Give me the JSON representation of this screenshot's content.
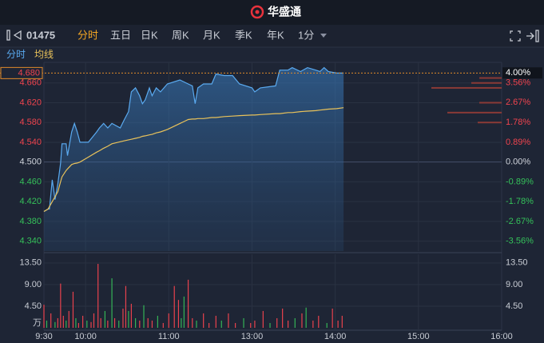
{
  "header": {
    "brand": "华盛通"
  },
  "toolbar": {
    "symbol": "01475",
    "tabs": [
      "分时",
      "五日",
      "日K",
      "周K",
      "月K",
      "季K",
      "年K"
    ],
    "active_tab": 0,
    "interval": "1分"
  },
  "chart_data": [
    {
      "type": "line",
      "x": [
        0,
        3,
        4,
        6,
        8,
        10,
        12,
        13,
        16,
        17,
        20,
        22,
        24,
        26,
        32,
        38,
        40,
        43,
        46,
        49,
        55,
        58,
        61,
        63,
        66,
        69,
        71,
        73,
        76,
        78,
        81,
        84,
        89,
        98,
        101,
        104,
        107,
        109,
        111,
        115,
        121,
        124,
        130,
        136,
        141,
        150,
        152,
        156,
        167,
        170,
        176,
        179,
        185,
        190,
        196,
        199,
        202,
        205,
        211,
        216
      ],
      "xlim": [
        0,
        330
      ],
      "series": [
        {
          "name": "分时",
          "color": "#5aaaf0",
          "values": [
            4.4,
            4.405,
            4.405,
            4.464,
            4.424,
            4.456,
            4.497,
            4.537,
            4.537,
            4.513,
            4.561,
            4.578,
            4.561,
            4.54,
            4.54,
            4.561,
            4.569,
            4.578,
            4.569,
            4.578,
            4.569,
            4.586,
            4.602,
            4.642,
            4.65,
            4.634,
            4.618,
            4.626,
            4.65,
            4.634,
            4.65,
            4.642,
            4.658,
            4.666,
            4.662,
            4.658,
            4.654,
            4.618,
            4.65,
            4.658,
            4.658,
            4.678,
            4.675,
            4.675,
            4.658,
            4.65,
            4.642,
            4.65,
            4.654,
            4.686,
            4.686,
            4.691,
            4.683,
            4.691,
            4.686,
            4.683,
            4.691,
            4.683,
            4.68,
            4.68
          ]
        },
        {
          "name": "均线",
          "color": "#e9c25a",
          "values": [
            4.4,
            4.405,
            4.41,
            4.42,
            4.43,
            4.44,
            4.46,
            4.47,
            4.483,
            4.486,
            4.495,
            4.497,
            4.498,
            4.5,
            4.51,
            4.52,
            4.523,
            4.528,
            4.532,
            4.537,
            4.541,
            4.543,
            4.545,
            4.546,
            4.548,
            4.55,
            4.552,
            4.553,
            4.555,
            4.556,
            4.559,
            4.561,
            4.566,
            4.578,
            4.582,
            4.586,
            4.587,
            4.587,
            4.588,
            4.588,
            4.59,
            4.59,
            4.592,
            4.593,
            4.594,
            4.595,
            4.595,
            4.596,
            4.598,
            4.598,
            4.6,
            4.6,
            4.602,
            4.603,
            4.604,
            4.605,
            4.606,
            4.607,
            4.608,
            4.61
          ]
        }
      ],
      "ylim": [
        4.32,
        4.7
      ],
      "yticks": [
        {
          "value": 4.66,
          "label": "4.660"
        },
        {
          "value": 4.62,
          "label": "4.620"
        },
        {
          "value": 4.58,
          "label": "4.580"
        },
        {
          "value": 4.54,
          "label": "4.540"
        },
        {
          "value": 4.5,
          "label": "4.500"
        },
        {
          "value": 4.46,
          "label": "4.460"
        },
        {
          "value": 4.42,
          "label": "4.420"
        },
        {
          "value": 4.38,
          "label": "4.380"
        },
        {
          "value": 4.34,
          "label": "4.340"
        }
      ],
      "y2lim": [
        -4.0,
        4.44
      ],
      "y2ticks": [
        {
          "value": 3.56,
          "label": "3.56%"
        },
        {
          "value": 2.67,
          "label": "2.67%"
        },
        {
          "value": 1.78,
          "label": "1.78%"
        },
        {
          "value": 0.89,
          "label": "0.89%"
        },
        {
          "value": 0,
          "label": "0.00%"
        },
        {
          "value": -0.89,
          "label": "-0.89%"
        },
        {
          "value": -1.78,
          "label": "-1.78%"
        },
        {
          "value": -2.67,
          "label": "-2.67%"
        },
        {
          "value": -3.56,
          "label": "-3.56%"
        }
      ],
      "prev_close": 4.5,
      "up_color": "#f0444e",
      "down_color": "#35c15a",
      "flat_color": "#d0d4dc",
      "last_price": {
        "value": 4.68,
        "label": "4.680"
      },
      "last_change": {
        "value": 4.0,
        "label": "4.00%"
      },
      "volume_profile": {
        "prices": [
          4.67,
          4.66,
          4.65,
          4.62,
          4.6,
          4.58
        ],
        "values": [
          28,
          38,
          88,
          28,
          68,
          30
        ],
        "xlim": [
          0,
          100
        ],
        "color": "#8a3a36"
      }
    },
    {
      "type": "bar",
      "x": [
        0,
        2,
        5,
        8,
        10,
        12,
        14,
        16,
        18,
        21,
        23,
        25,
        28,
        31,
        34,
        36,
        39,
        41,
        44,
        46,
        49,
        51,
        54,
        57,
        59,
        61,
        63,
        66,
        69,
        72,
        75,
        78,
        82,
        86,
        90,
        94,
        97,
        99,
        101,
        104,
        107,
        110,
        115,
        119,
        124,
        128,
        133,
        138,
        144,
        149,
        152,
        158,
        163,
        168,
        172,
        176,
        181,
        186,
        189,
        194,
        198,
        204,
        208,
        212,
        215
      ],
      "xlim": [
        0,
        330
      ],
      "xticks": [
        {
          "value": 0,
          "label": "9:30"
        },
        {
          "value": 30,
          "label": "10:00"
        },
        {
          "value": 90,
          "label": "11:00"
        },
        {
          "value": 150,
          "label": "13:00"
        },
        {
          "value": 210,
          "label": "14:00"
        },
        {
          "value": 270,
          "label": "15:00"
        },
        {
          "value": 330,
          "label": "16:00"
        }
      ],
      "values": [
        4.8,
        1.5,
        3.0,
        1.2,
        2.0,
        9.2,
        2.5,
        1.5,
        3.5,
        7.5,
        2.0,
        1.0,
        2.5,
        1.5,
        1.2,
        3.0,
        13.3,
        2.0,
        3.5,
        1.5,
        10.3,
        2.0,
        1.5,
        4.0,
        8.7,
        3.5,
        5.0,
        2.0,
        1.5,
        4.7,
        2.0,
        1.5,
        2.5,
        1.0,
        3.0,
        8.7,
        5.8,
        2.0,
        6.5,
        10.0,
        2.0,
        1.5,
        3.0,
        1.0,
        2.5,
        1.5,
        3.0,
        1.0,
        2.0,
        1.0,
        1.5,
        3.5,
        1.0,
        2.0,
        4.0,
        1.5,
        2.0,
        3.0,
        4.2,
        1.5,
        2.5,
        1.0,
        4.0,
        1.5,
        2.5
      ],
      "colors": [
        "#e8424d",
        "#34b356",
        "#e8424d",
        "#34b356",
        "#e8424d",
        "#e8424d",
        "#e8424d",
        "#34b356",
        "#e8424d",
        "#e8424d",
        "#34b356",
        "#e8424d",
        "#e8424d",
        "#34b356",
        "#e8424d",
        "#e8424d",
        "#e8424d",
        "#e8424d",
        "#34b356",
        "#e8424d",
        "#34b356",
        "#e8424d",
        "#34b356",
        "#e8424d",
        "#e8424d",
        "#34b356",
        "#e8424d",
        "#34b356",
        "#e8424d",
        "#34b356",
        "#e8424d",
        "#e8424d",
        "#34b356",
        "#e8424d",
        "#e8424d",
        "#e8424d",
        "#e8424d",
        "#34b356",
        "#34b356",
        "#e8424d",
        "#e8424d",
        "#34b356",
        "#e8424d",
        "#e8424d",
        "#e8424d",
        "#34b356",
        "#e8424d",
        "#e8424d",
        "#34b356",
        "#e8424d",
        "#e8424d",
        "#e8424d",
        "#34b356",
        "#e8424d",
        "#e8424d",
        "#e8424d",
        "#34b356",
        "#e8424d",
        "#34b356",
        "#e8424d",
        "#e8424d",
        "#34b356",
        "#e8424d",
        "#e8424d",
        "#e8424d"
      ],
      "ylim": [
        0,
        15.3
      ],
      "yticks": [
        {
          "value": 13.5,
          "label": "13.50"
        },
        {
          "value": 9,
          "label": "9.00"
        },
        {
          "value": 4.5,
          "label": "4.50"
        },
        {
          "value": 0,
          "label": "万"
        }
      ]
    }
  ]
}
